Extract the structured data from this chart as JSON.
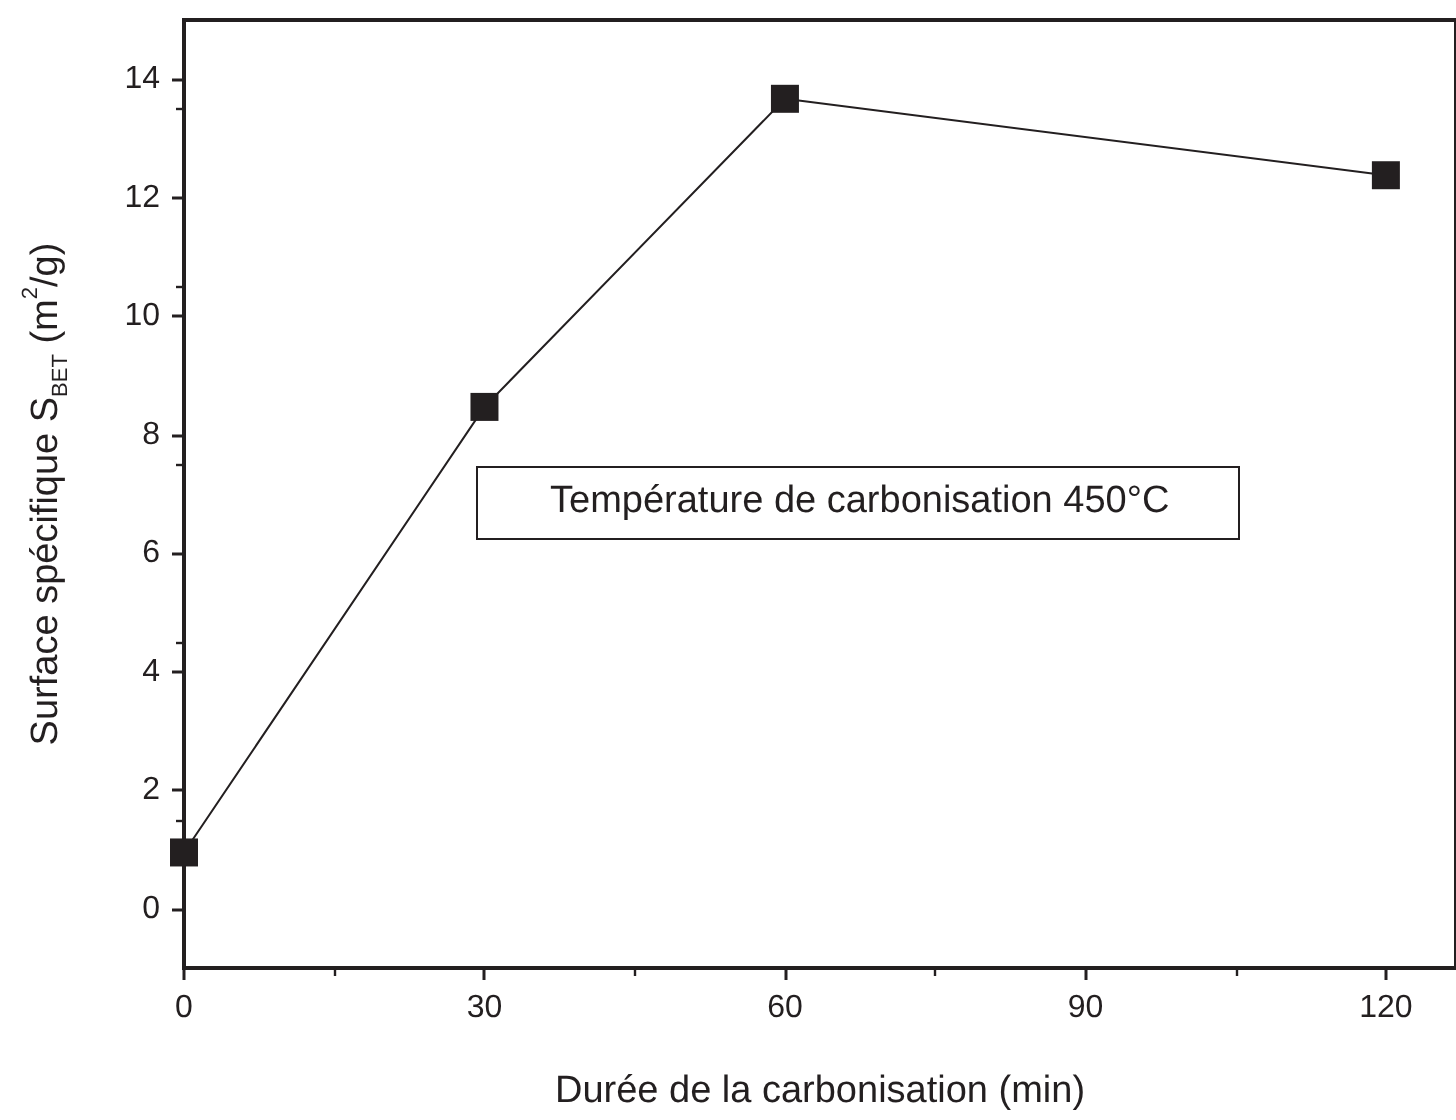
{
  "chart_data": {
    "type": "line",
    "xlabel": "Durée de la carbonisation (min)",
    "ylabel": "Surface spécifique S$_{BET}$ (m$^{2}$/g)",
    "x": [
      0,
      30,
      60,
      120
    ],
    "series": [
      {
        "color": "#231f20",
        "values": [
          0.95,
          8.47,
          13.67,
          12.38
        ]
      }
    ],
    "xlim": [
      0,
      127
    ],
    "xticks": [
      0,
      30,
      60,
      90,
      120
    ],
    "ylim": [
      -1,
      15
    ],
    "yticks": [
      0,
      2,
      4,
      6,
      8,
      10,
      12,
      14
    ],
    "marker": "square",
    "line_style": "solid",
    "grid": false,
    "annotations": [
      "Température de carbonisation 450°C"
    ]
  }
}
